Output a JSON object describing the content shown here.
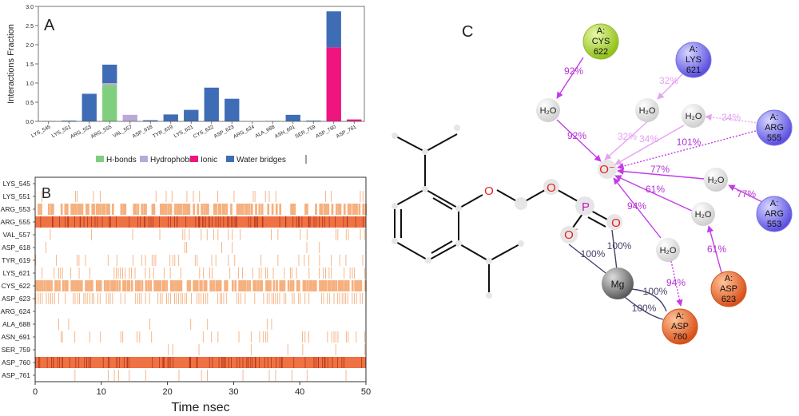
{
  "panels": {
    "a": "A",
    "b": "B",
    "c": "C"
  },
  "chart_data": [
    {
      "type": "bar",
      "stacked": true,
      "panel": "A",
      "ylabel": "Interactions Fraction",
      "ylim": [
        0,
        3.0
      ],
      "yticks": [
        "0.0",
        "0.5",
        "1.0",
        "1.5",
        "2.0",
        "2.5",
        "3.0"
      ],
      "categories": [
        "LYS_545",
        "LYS_551",
        "ARG_553",
        "ARG_555",
        "VAL_557",
        "ASP_618",
        "TYR_619",
        "LYS_621",
        "CYS_622",
        "ASP_623",
        "ARG_624",
        "ALA_688",
        "ASN_691",
        "SER_759",
        "ASP_760",
        "ASP_761"
      ],
      "series": [
        {
          "name": "H-bonds",
          "color": "#7fcf7f",
          "values": [
            0,
            0,
            0,
            0.95,
            0,
            0,
            0,
            0,
            0,
            0,
            0,
            0,
            0,
            0,
            0,
            0
          ]
        },
        {
          "name": "Hydrophobic",
          "color": "#b9a9d6",
          "values": [
            0,
            0,
            0,
            0.05,
            0.17,
            0,
            0,
            0,
            0,
            0,
            0,
            0,
            0,
            0,
            0,
            0
          ]
        },
        {
          "name": "Ionic",
          "color": "#f0147f",
          "values": [
            0,
            0,
            0,
            0,
            0,
            0,
            0,
            0,
            0,
            0,
            0,
            0,
            0,
            0,
            1.93,
            0.05
          ]
        },
        {
          "name": "Water bridges",
          "color": "#3f6db5",
          "values": [
            0.01,
            0.02,
            0.72,
            0.48,
            0,
            0.03,
            0.18,
            0.3,
            0.88,
            0.59,
            0,
            0.01,
            0.17,
            0.02,
            0.94,
            0
          ]
        }
      ]
    },
    {
      "type": "heatmap",
      "panel": "B",
      "xlabel": "Time nsec",
      "xlim": [
        0,
        50
      ],
      "xticks": [
        "0",
        "10",
        "20",
        "30",
        "40",
        "50"
      ],
      "rows": [
        {
          "label": "LYS_545",
          "occupancy": 0.0
        },
        {
          "label": "LYS_551",
          "occupancy": 0.15
        },
        {
          "label": "ARG_553",
          "occupancy": 0.7
        },
        {
          "label": "ARG_555",
          "occupancy": 1.0
        },
        {
          "label": "VAL_557",
          "occupancy": 0.15
        },
        {
          "label": "ASP_618",
          "occupancy": 0.05
        },
        {
          "label": "TYR_619",
          "occupancy": 0.2
        },
        {
          "label": "LYS_621",
          "occupancy": 0.3
        },
        {
          "label": "CYS_622",
          "occupancy": 0.85
        },
        {
          "label": "ASP_623",
          "occupancy": 0.6
        },
        {
          "label": "ARG_624",
          "occupancy": 0.0
        },
        {
          "label": "ALA_688",
          "occupancy": 0.02
        },
        {
          "label": "ASN_691",
          "occupancy": 0.2
        },
        {
          "label": "SER_759",
          "occupancy": 0.05
        },
        {
          "label": "ASP_760",
          "occupancy": 1.0
        },
        {
          "label": "ASP_761",
          "occupancy": 0.08
        }
      ]
    }
  ],
  "diagram": {
    "atoms": {
      "o1": "O",
      "o2": "O",
      "p": "P",
      "o3": "O",
      "ominus": "O",
      "ominus_top": "O⁻",
      "ominus_charge": "-"
    },
    "waters": [
      "H₂O",
      "H₂O",
      "H₂O",
      "H₂O",
      "H₂O",
      "H₂O"
    ],
    "mg": "Mg",
    "residues": [
      {
        "chain": "A:",
        "name": "CYS",
        "num": "622"
      },
      {
        "chain": "A:",
        "name": "LYS",
        "num": "621"
      },
      {
        "chain": "A:",
        "name": "ARG",
        "num": "555"
      },
      {
        "chain": "A:",
        "name": "ARG",
        "num": "553"
      },
      {
        "chain": "A:",
        "name": "ASP",
        "num": "623"
      },
      {
        "chain": "A:",
        "name": "ASP",
        "num": "760"
      }
    ],
    "labels": {
      "cys_w1": "92%",
      "w1_o": "92%",
      "lys_w2": "32%",
      "w2_o_a": "32%",
      "w2_o_b": "34%",
      "arg555_w3": "34%",
      "arg555_o": "101%",
      "w4_o": "77%",
      "arg553_w4": "77%",
      "w5_o": "61%",
      "asp623_w5": "61%",
      "w6_o": "94%",
      "w6_asp760": "94%",
      "mg_o1": "100%",
      "mg_o2": "100%",
      "mg_asp_a": "100%",
      "mg_asp_b": "100%"
    }
  }
}
